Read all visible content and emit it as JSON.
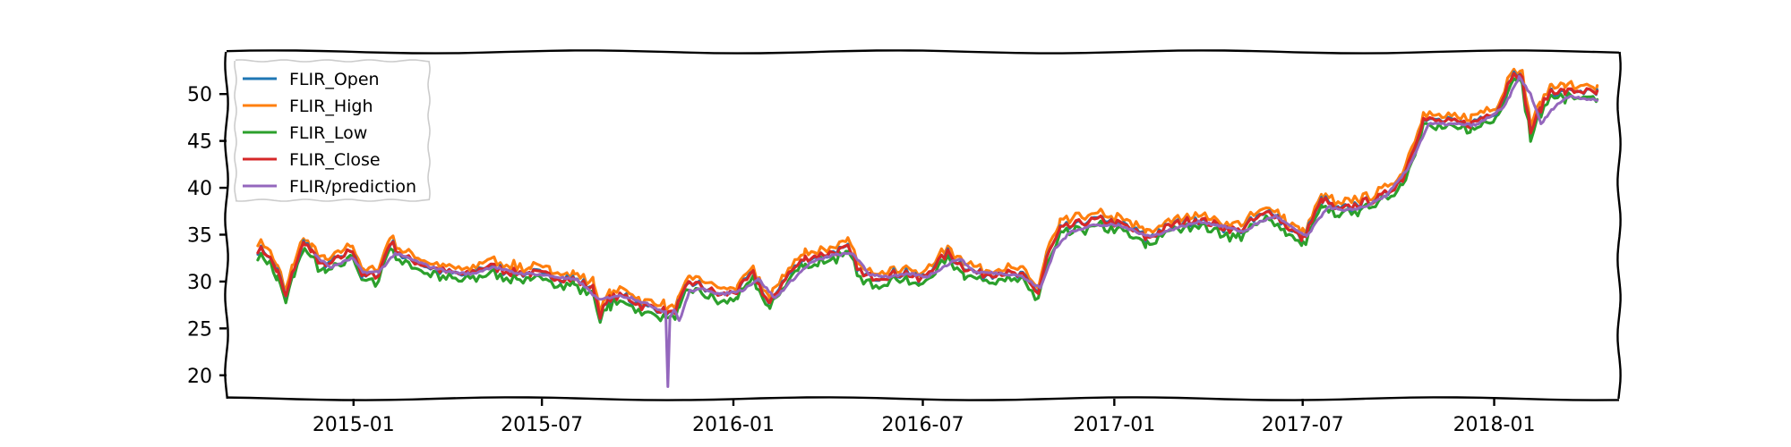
{
  "chart_data": {
    "type": "line",
    "title": "",
    "xlabel": "",
    "ylabel": "",
    "x_ticks": [
      "2015-01",
      "2015-07",
      "2016-01",
      "2016-07",
      "2017-01",
      "2017-07",
      "2018-01"
    ],
    "y_ticks": [
      20,
      25,
      30,
      35,
      40,
      45,
      50
    ],
    "xlim": [
      "2014-09-01",
      "2018-05-01"
    ],
    "ylim": [
      17.5,
      54.5
    ],
    "grid": false,
    "legend_position": "top-left",
    "series": [
      {
        "name": "FLIR_Open",
        "color": "#1f77b4"
      },
      {
        "name": "FLIR_High",
        "color": "#ff7f0e"
      },
      {
        "name": "FLIR_Low",
        "color": "#2ca02c"
      },
      {
        "name": "FLIR_Close",
        "color": "#d62728"
      },
      {
        "name": "FLIR/prediction",
        "color": "#9467bd"
      }
    ],
    "close_points": [
      [
        "2014-10-01",
        33.5
      ],
      [
        "2014-10-10",
        33.0
      ],
      [
        "2014-10-20",
        31.0
      ],
      [
        "2014-10-28",
        28.3
      ],
      [
        "2014-11-05",
        31.5
      ],
      [
        "2014-11-15",
        34.3
      ],
      [
        "2014-11-22",
        33.0
      ],
      [
        "2014-12-05",
        31.5
      ],
      [
        "2014-12-20",
        32.6
      ],
      [
        "2014-12-31",
        33.5
      ],
      [
        "2015-01-10",
        30.5
      ],
      [
        "2015-01-25",
        30.8
      ],
      [
        "2015-02-05",
        34.2
      ],
      [
        "2015-02-20",
        32.5
      ],
      [
        "2015-03-10",
        31.8
      ],
      [
        "2015-03-31",
        31.0
      ],
      [
        "2015-04-20",
        30.7
      ],
      [
        "2015-05-10",
        31.7
      ],
      [
        "2015-06-01",
        31.0
      ],
      [
        "2015-06-20",
        30.9
      ],
      [
        "2015-07-10",
        30.6
      ],
      [
        "2015-08-01",
        30.2
      ],
      [
        "2015-08-20",
        29.2
      ],
      [
        "2015-08-26",
        26.5
      ],
      [
        "2015-09-05",
        28.3
      ],
      [
        "2015-09-20",
        28.4
      ],
      [
        "2015-10-05",
        27.4
      ],
      [
        "2015-10-20",
        27.2
      ],
      [
        "2015-10-28",
        26.8
      ],
      [
        "2015-11-03",
        26.5
      ],
      [
        "2015-11-10",
        27.7
      ],
      [
        "2015-11-20",
        30.0
      ],
      [
        "2015-12-05",
        29.3
      ],
      [
        "2015-12-20",
        28.5
      ],
      [
        "2016-01-05",
        29.0
      ],
      [
        "2016-01-20",
        30.8
      ],
      [
        "2016-02-05",
        27.5
      ],
      [
        "2016-02-20",
        30.5
      ],
      [
        "2016-03-10",
        32.5
      ],
      [
        "2016-03-31",
        33.0
      ],
      [
        "2016-04-20",
        33.5
      ],
      [
        "2016-05-05",
        30.5
      ],
      [
        "2016-05-25",
        30.6
      ],
      [
        "2016-06-15",
        31.0
      ],
      [
        "2016-06-28",
        30.0
      ],
      [
        "2016-07-10",
        31.5
      ],
      [
        "2016-07-25",
        33.0
      ],
      [
        "2016-08-10",
        31.5
      ],
      [
        "2016-08-25",
        30.8
      ],
      [
        "2016-09-15",
        31.0
      ],
      [
        "2016-10-05",
        30.5
      ],
      [
        "2016-10-20",
        28.8
      ],
      [
        "2016-10-28",
        32.5
      ],
      [
        "2016-11-10",
        35.5
      ],
      [
        "2016-12-01",
        36.3
      ],
      [
        "2016-12-20",
        36.6
      ],
      [
        "2017-01-10",
        36.0
      ],
      [
        "2017-02-01",
        34.6
      ],
      [
        "2017-02-25",
        36.0
      ],
      [
        "2017-03-20",
        36.7
      ],
      [
        "2017-04-10",
        36.0
      ],
      [
        "2017-04-30",
        35.4
      ],
      [
        "2017-05-15",
        36.5
      ],
      [
        "2017-06-01",
        37.5
      ],
      [
        "2017-06-15",
        36.0
      ],
      [
        "2017-07-01",
        34.5
      ],
      [
        "2017-07-20",
        38.8
      ],
      [
        "2017-08-05",
        37.5
      ],
      [
        "2017-08-25",
        38.3
      ],
      [
        "2017-09-15",
        39.0
      ],
      [
        "2017-10-05",
        41.0
      ],
      [
        "2017-10-25",
        47.3
      ],
      [
        "2017-11-15",
        47.0
      ],
      [
        "2017-12-10",
        46.8
      ],
      [
        "2018-01-05",
        48.5
      ],
      [
        "2018-01-20",
        52.6
      ],
      [
        "2018-01-28",
        51.5
      ],
      [
        "2018-02-05",
        46.0
      ],
      [
        "2018-02-15",
        48.5
      ],
      [
        "2018-02-25",
        50.5
      ],
      [
        "2018-03-10",
        50.2
      ],
      [
        "2018-03-25",
        50.4
      ],
      [
        "2018-04-10",
        50.0
      ]
    ],
    "prediction_points": [
      [
        "2014-11-25",
        32.8
      ],
      [
        "2014-12-10",
        31.5
      ],
      [
        "2014-12-31",
        32.5
      ],
      [
        "2015-01-10",
        31.0
      ],
      [
        "2015-01-25",
        31.0
      ],
      [
        "2015-02-10",
        33.0
      ],
      [
        "2015-02-25",
        32.4
      ],
      [
        "2015-03-15",
        31.6
      ],
      [
        "2015-04-05",
        31.0
      ],
      [
        "2015-04-25",
        30.8
      ],
      [
        "2015-05-15",
        31.6
      ],
      [
        "2015-06-05",
        30.9
      ],
      [
        "2015-06-25",
        30.8
      ],
      [
        "2015-07-15",
        30.5
      ],
      [
        "2015-08-05",
        30.1
      ],
      [
        "2015-08-25",
        28.0
      ],
      [
        "2015-09-10",
        28.5
      ],
      [
        "2015-09-25",
        28.3
      ],
      [
        "2015-10-10",
        27.6
      ],
      [
        "2015-10-22",
        27.0
      ],
      [
        "2015-10-28",
        26.8
      ],
      [
        "2015-10-30",
        18.8
      ],
      [
        "2015-11-01",
        26.2
      ],
      [
        "2015-11-05",
        27.0
      ],
      [
        "2015-11-10",
        25.8
      ],
      [
        "2015-11-20",
        29.0
      ],
      [
        "2015-12-05",
        29.2
      ],
      [
        "2015-12-20",
        28.6
      ],
      [
        "2016-01-10",
        29.1
      ],
      [
        "2016-01-25",
        30.3
      ],
      [
        "2016-02-10",
        28.2
      ],
      [
        "2016-02-25",
        30.0
      ],
      [
        "2016-03-15",
        32.0
      ],
      [
        "2016-04-05",
        32.8
      ],
      [
        "2016-04-25",
        33.0
      ],
      [
        "2016-05-10",
        30.8
      ],
      [
        "2016-05-30",
        30.5
      ],
      [
        "2016-06-20",
        30.8
      ],
      [
        "2016-07-05",
        30.5
      ],
      [
        "2016-07-20",
        31.5
      ],
      [
        "2016-08-05",
        32.5
      ],
      [
        "2016-08-20",
        31.0
      ],
      [
        "2016-09-10",
        30.9
      ],
      [
        "2016-10-01",
        30.7
      ],
      [
        "2016-10-22",
        29.3
      ],
      [
        "2016-11-05",
        33.5
      ],
      [
        "2016-11-20",
        35.3
      ],
      [
        "2016-12-10",
        36.0
      ],
      [
        "2017-01-05",
        36.0
      ],
      [
        "2017-02-05",
        34.8
      ],
      [
        "2017-03-01",
        35.7
      ],
      [
        "2017-03-25",
        36.4
      ],
      [
        "2017-04-15",
        35.9
      ],
      [
        "2017-05-05",
        35.3
      ],
      [
        "2017-05-20",
        36.3
      ],
      [
        "2017-06-05",
        37.0
      ],
      [
        "2017-06-20",
        35.8
      ],
      [
        "2017-07-05",
        34.8
      ],
      [
        "2017-07-25",
        38.0
      ],
      [
        "2017-08-10",
        37.5
      ],
      [
        "2017-08-30",
        38.0
      ],
      [
        "2017-09-20",
        39.2
      ],
      [
        "2017-10-10",
        42.0
      ],
      [
        "2017-10-30",
        46.8
      ],
      [
        "2017-11-20",
        46.8
      ],
      [
        "2017-12-15",
        46.7
      ],
      [
        "2018-01-10",
        48.5
      ],
      [
        "2018-01-25",
        51.8
      ],
      [
        "2018-02-05",
        50.0
      ],
      [
        "2018-02-15",
        46.8
      ],
      [
        "2018-03-01",
        48.8
      ],
      [
        "2018-03-15",
        49.8
      ],
      [
        "2018-04-10",
        49.3
      ]
    ]
  }
}
